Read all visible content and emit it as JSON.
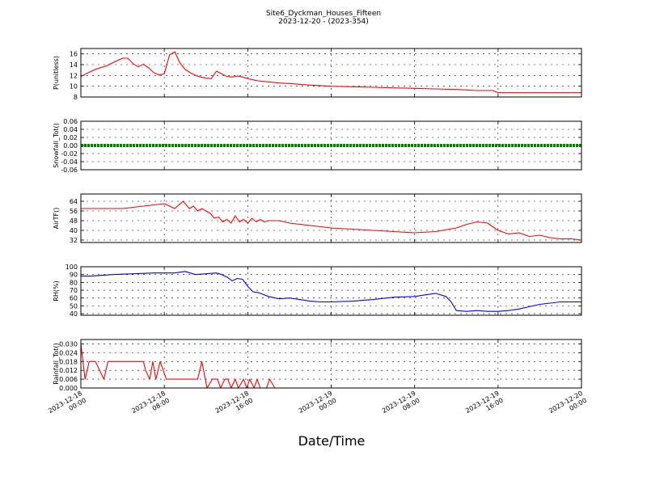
{
  "figure": {
    "title": "Site6_Dyckman_Houses_Fifteen",
    "subtitle": "2023-12-20 - (2023-354)",
    "xlabel": "Date/Time"
  },
  "chart_data": {
    "type": "line",
    "x_range": [
      "2023-12-18 00:00",
      "2023-12-20 00:00"
    ],
    "x_tick_labels": [
      [
        "2023-12-18",
        "00:00"
      ],
      [
        "2023-12-18",
        "08:00"
      ],
      [
        "2023-12-18",
        "16:00"
      ],
      [
        "2023-12-19",
        "00:00"
      ],
      [
        "2023-12-19",
        "08:00"
      ],
      [
        "2023-12-19",
        "16:00"
      ],
      [
        "2023-12-20",
        "00:00"
      ]
    ],
    "grid": true,
    "panels": [
      {
        "ylabel": "P(unitless)",
        "ylim": [
          8,
          17
        ],
        "yticks": [
          "8",
          "10",
          "12",
          "14",
          "16"
        ],
        "yticks_v": [
          8,
          10,
          12,
          14,
          16
        ],
        "color": "#ff0000",
        "style": "line",
        "x_hours": [
          0,
          0.5,
          1.5,
          2.5,
          3,
          4,
          4.5,
          5,
          5.5,
          6,
          6.5,
          7,
          7.5,
          8,
          8.5,
          9,
          9.5,
          10,
          10.5,
          11,
          11.5,
          12,
          12.5,
          13,
          13.5,
          14,
          14.5,
          15,
          15.5,
          16,
          17,
          18,
          19,
          20,
          22,
          24,
          26,
          28,
          30,
          32,
          34,
          36,
          38,
          39.5,
          40,
          40.5,
          42,
          44,
          46,
          48
        ],
        "y": [
          11.8,
          12.3,
          13.2,
          13.8,
          14.3,
          15.2,
          15.2,
          14.2,
          13.6,
          14.1,
          13.4,
          12.5,
          12.1,
          12.3,
          15.8,
          16.4,
          14.3,
          13.1,
          12.5,
          12.0,
          11.7,
          11.5,
          11.4,
          12.8,
          12.3,
          11.8,
          11.7,
          11.9,
          11.7,
          11.4,
          11.0,
          10.8,
          10.6,
          10.5,
          10.2,
          10.0,
          9.9,
          9.8,
          9.7,
          9.6,
          9.5,
          9.4,
          9.2,
          9.2,
          8.8,
          8.8,
          8.8,
          8.8,
          8.8,
          8.8
        ]
      },
      {
        "ylabel": "Snowfall_Tot()",
        "ylim": [
          -0.06,
          0.06
        ],
        "yticks": [
          "-0.06",
          "-0.04",
          "-0.02",
          "0.00",
          "0.02",
          "0.04",
          "0.06"
        ],
        "yticks_v": [
          -0.06,
          -0.04,
          -0.02,
          0,
          0.02,
          0.04,
          0.06
        ],
        "color": "#008000",
        "style": "markers",
        "x_hours": [
          0,
          48
        ],
        "y": [
          0,
          0
        ]
      },
      {
        "ylabel": "AirTF()",
        "ylim": [
          30,
          70
        ],
        "yticks": [
          "32",
          "40",
          "48",
          "56",
          "64"
        ],
        "yticks_v": [
          32,
          40,
          48,
          56,
          64
        ],
        "color": "#ff0000",
        "style": "line",
        "x_hours": [
          0,
          1,
          2,
          3,
          4,
          5,
          6,
          7,
          8,
          9,
          9.8,
          10.4,
          10.8,
          11.2,
          11.6,
          12.0,
          12.4,
          12.8,
          13.2,
          13.6,
          14.0,
          14.4,
          14.8,
          15.2,
          15.6,
          16.0,
          16.4,
          16.8,
          17.2,
          17.6,
          18.0,
          19,
          20,
          21,
          22,
          23,
          24,
          26,
          28,
          30,
          32,
          34,
          36,
          37,
          38,
          39,
          40,
          41,
          42,
          43,
          44,
          45,
          46,
          47,
          48
        ],
        "y": [
          58,
          58,
          58,
          58,
          58,
          59,
          60,
          61,
          62,
          58,
          64,
          58,
          60,
          56,
          58,
          56,
          54,
          50,
          51,
          47,
          49,
          46,
          52,
          47,
          49,
          46,
          50,
          47,
          49,
          47,
          48,
          48,
          46,
          45,
          44,
          43,
          42,
          41,
          40,
          39,
          38,
          39,
          42,
          45,
          47,
          46,
          40,
          37,
          38,
          35,
          36,
          34,
          33,
          33,
          32
        ]
      },
      {
        "ylabel": "RH(%)",
        "ylim": [
          38,
          100
        ],
        "yticks": [
          "40",
          "50",
          "60",
          "70",
          "80",
          "90",
          "100"
        ],
        "yticks_v": [
          40,
          50,
          60,
          70,
          80,
          90,
          100
        ],
        "color": "#0000ff",
        "style": "line",
        "x_hours": [
          0,
          1,
          3,
          5,
          7,
          9,
          10,
          11,
          12,
          13,
          13.5,
          14,
          14.5,
          15,
          15.5,
          16,
          16.5,
          17,
          18,
          19,
          20,
          21,
          22,
          23,
          24,
          26,
          28,
          30,
          32,
          33,
          34,
          35,
          35.5,
          36,
          37,
          38,
          39,
          40,
          41,
          42,
          43,
          44,
          46,
          48
        ],
        "y": [
          88,
          88,
          90,
          91,
          92,
          92,
          94,
          90,
          91,
          92,
          90,
          87,
          82,
          85,
          84,
          75,
          68,
          67,
          62,
          59,
          60,
          58,
          56,
          55,
          55,
          56,
          58,
          61,
          62,
          64,
          66,
          62,
          55,
          44,
          43,
          44,
          43,
          43,
          44,
          46,
          49,
          52,
          55,
          55
        ]
      },
      {
        "ylabel": "Rainfall_Tot()",
        "ylim": [
          0,
          0.033
        ],
        "yticks": [
          "0.000",
          "0.006",
          "0.012",
          "0.018",
          "0.024",
          "0.030"
        ],
        "yticks_v": [
          0,
          0.006,
          0.012,
          0.018,
          0.024,
          0.03
        ],
        "color": "#ff0000",
        "style": "line",
        "x_hours": [
          0,
          0.4,
          0.8,
          1.4,
          2.2,
          2.6,
          3.0,
          3.4,
          4.0,
          5.0,
          5.8,
          6.0,
          6.2,
          6.6,
          6.9,
          7.2,
          7.6,
          8.2,
          9.0,
          10.0,
          11.2,
          11.6,
          12.1,
          12.6,
          13.1,
          13.4,
          13.8,
          14.1,
          14.4,
          14.8,
          15.1,
          15.6,
          15.9,
          16.2,
          16.6,
          16.9,
          17.2,
          17.8,
          18.1,
          18.6,
          19.0,
          20,
          24,
          28,
          32,
          36,
          40,
          44,
          48
        ],
        "y": [
          0.03,
          0.006,
          0.018,
          0.018,
          0.006,
          0.018,
          0.018,
          0.018,
          0.018,
          0.018,
          0.018,
          0.018,
          0.012,
          0.006,
          0.018,
          0.006,
          0.018,
          0.006,
          0.006,
          0.006,
          0.006,
          0.018,
          0.0,
          0.006,
          0.006,
          0.0,
          0.006,
          0.006,
          0.0,
          0.006,
          0.0,
          0.006,
          0.0,
          0.006,
          0.0,
          0.006,
          0.0,
          0.0,
          0.006,
          0.0,
          0.0,
          0.0,
          0.0,
          0.0,
          0.0,
          0.0,
          0.0,
          0.0,
          0.0
        ]
      }
    ]
  }
}
